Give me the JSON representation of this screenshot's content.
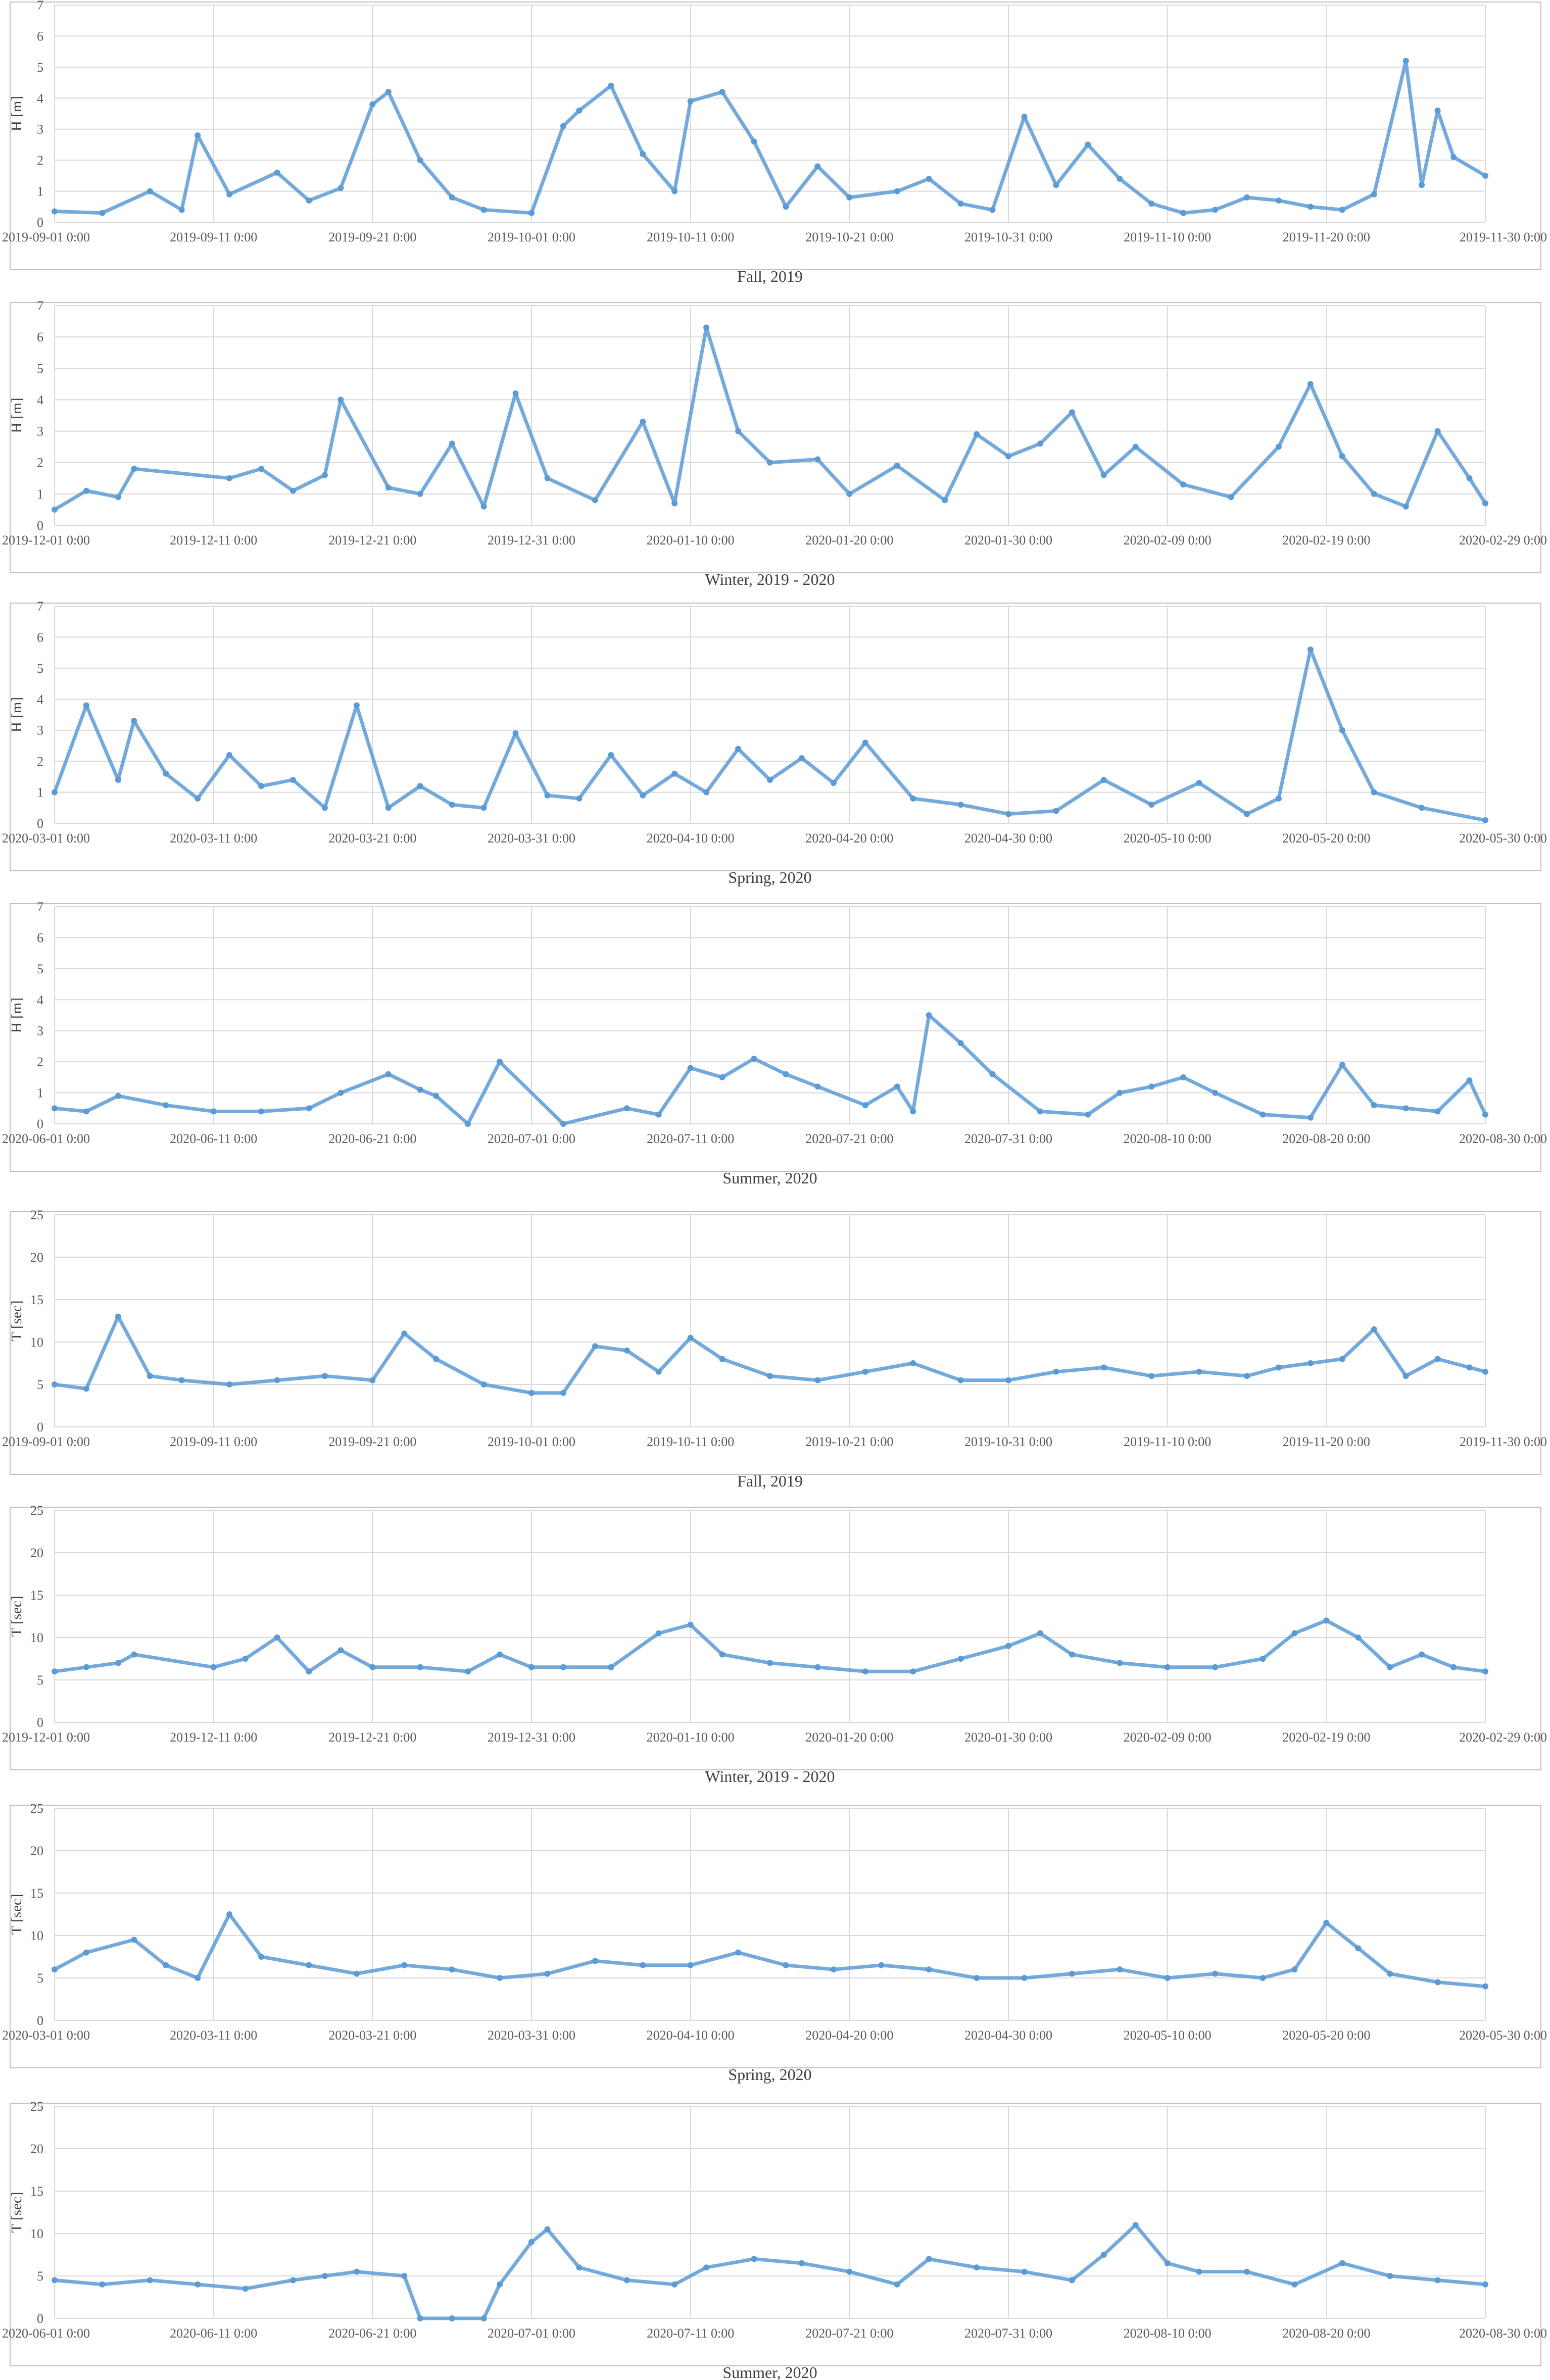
{
  "style": {
    "marker_color": "#5B9BD5",
    "grid_color": "#D9D9D9",
    "axis_text_color": "#595959"
  },
  "chart_data": [
    {
      "type": "scatter",
      "caption": "Fall, 2019",
      "ylabel": "H [m]",
      "ylim": [
        0,
        7
      ],
      "yticks": [
        "0",
        "1",
        "2",
        "3",
        "4",
        "5",
        "6",
        "7"
      ],
      "xticks": [
        "2019-09-01 0:00",
        "2019-09-11 0:00",
        "2019-09-21 0:00",
        "2019-10-01 0:00",
        "2019-10-11 0:00",
        "2019-10-21 0:00",
        "2019-10-31 0:00",
        "2019-11-10 0:00",
        "2019-11-20 0:00",
        "2019-11-30 0:00"
      ],
      "x": [
        "2019-09-01",
        "2019-09-04",
        "2019-09-07",
        "2019-09-09",
        "2019-09-10",
        "2019-09-12",
        "2019-09-15",
        "2019-09-17",
        "2019-09-19",
        "2019-09-21",
        "2019-09-22",
        "2019-09-24",
        "2019-09-26",
        "2019-09-28",
        "2019-10-01",
        "2019-10-03",
        "2019-10-04",
        "2019-10-06",
        "2019-10-08",
        "2019-10-10",
        "2019-10-11",
        "2019-10-13",
        "2019-10-15",
        "2019-10-17",
        "2019-10-19",
        "2019-10-21",
        "2019-10-24",
        "2019-10-26",
        "2019-10-28",
        "2019-10-30",
        "2019-11-01",
        "2019-11-03",
        "2019-11-05",
        "2019-11-07",
        "2019-11-09",
        "2019-11-11",
        "2019-11-13",
        "2019-11-15",
        "2019-11-17",
        "2019-11-19",
        "2019-11-21",
        "2019-11-23",
        "2019-11-25",
        "2019-11-26",
        "2019-11-27",
        "2019-11-28",
        "2019-11-30"
      ],
      "y": [
        0.35,
        0.3,
        1.0,
        0.4,
        2.8,
        0.9,
        1.6,
        0.7,
        1.1,
        3.8,
        4.2,
        2.0,
        0.8,
        0.4,
        0.3,
        3.1,
        3.6,
        4.4,
        2.2,
        1.0,
        3.9,
        4.2,
        2.6,
        0.5,
        1.8,
        0.8,
        1.0,
        1.4,
        0.6,
        0.4,
        3.4,
        1.2,
        2.5,
        1.4,
        0.6,
        0.3,
        0.4,
        0.8,
        0.7,
        0.5,
        0.4,
        0.9,
        5.2,
        1.2,
        3.6,
        2.1,
        1.5
      ]
    },
    {
      "type": "scatter",
      "caption": "Winter, 2019 - 2020",
      "ylabel": "H [m]",
      "ylim": [
        0,
        7
      ],
      "yticks": [
        "0",
        "1",
        "2",
        "3",
        "4",
        "5",
        "6",
        "7"
      ],
      "xticks": [
        "2019-12-01 0:00",
        "2019-12-11 0:00",
        "2019-12-21 0:00",
        "2019-12-31 0:00",
        "2020-01-10 0:00",
        "2020-01-20 0:00",
        "2020-01-30 0:00",
        "2020-02-09 0:00",
        "2020-02-19 0:00",
        "2020-02-29 0:00"
      ],
      "x": [
        "2019-12-01",
        "2019-12-03",
        "2019-12-05",
        "2019-12-06",
        "2019-12-12",
        "2019-12-14",
        "2019-12-16",
        "2019-12-18",
        "2019-12-19",
        "2019-12-22",
        "2019-12-24",
        "2019-12-26",
        "2019-12-28",
        "2019-12-30",
        "2020-01-01",
        "2020-01-04",
        "2020-01-07",
        "2020-01-09",
        "2020-01-11",
        "2020-01-13",
        "2020-01-15",
        "2020-01-18",
        "2020-01-20",
        "2020-01-23",
        "2020-01-26",
        "2020-01-28",
        "2020-01-30",
        "2020-02-01",
        "2020-02-03",
        "2020-02-05",
        "2020-02-07",
        "2020-02-10",
        "2020-02-13",
        "2020-02-16",
        "2020-02-18",
        "2020-02-20",
        "2020-02-22",
        "2020-02-24",
        "2020-02-26",
        "2020-02-28",
        "2020-02-29"
      ],
      "y": [
        0.5,
        1.1,
        0.9,
        1.8,
        1.5,
        1.8,
        1.1,
        1.6,
        4.0,
        1.2,
        1.0,
        2.6,
        0.6,
        4.2,
        1.5,
        0.8,
        3.3,
        0.7,
        6.3,
        3.0,
        2.0,
        2.1,
        1.0,
        1.9,
        0.8,
        2.9,
        2.2,
        2.6,
        3.6,
        1.6,
        2.5,
        1.3,
        0.9,
        2.5,
        4.5,
        2.2,
        1.0,
        0.6,
        3.0,
        1.5,
        0.7
      ]
    },
    {
      "type": "scatter",
      "caption": "Spring, 2020",
      "ylabel": "H [m]",
      "ylim": [
        0,
        7
      ],
      "yticks": [
        "0",
        "1",
        "2",
        "3",
        "4",
        "5",
        "6",
        "7"
      ],
      "xticks": [
        "2020-03-01 0:00",
        "2020-03-11 0:00",
        "2020-03-21 0:00",
        "2020-03-31 0:00",
        "2020-04-10 0:00",
        "2020-04-20 0:00",
        "2020-04-30 0:00",
        "2020-05-10 0:00",
        "2020-05-20 0:00",
        "2020-05-30 0:00"
      ],
      "x": [
        "2020-03-01",
        "2020-03-03",
        "2020-03-05",
        "2020-03-06",
        "2020-03-08",
        "2020-03-10",
        "2020-03-12",
        "2020-03-14",
        "2020-03-16",
        "2020-03-18",
        "2020-03-20",
        "2020-03-22",
        "2020-03-24",
        "2020-03-26",
        "2020-03-28",
        "2020-03-30",
        "2020-04-01",
        "2020-04-03",
        "2020-04-05",
        "2020-04-07",
        "2020-04-09",
        "2020-04-11",
        "2020-04-13",
        "2020-04-15",
        "2020-04-17",
        "2020-04-19",
        "2020-04-21",
        "2020-04-24",
        "2020-04-27",
        "2020-04-30",
        "2020-05-03",
        "2020-05-06",
        "2020-05-09",
        "2020-05-12",
        "2020-05-15",
        "2020-05-17",
        "2020-05-19",
        "2020-05-21",
        "2020-05-23",
        "2020-05-26",
        "2020-05-30"
      ],
      "y": [
        1.0,
        3.8,
        1.4,
        3.3,
        1.6,
        0.8,
        2.2,
        1.2,
        1.4,
        0.5,
        3.8,
        0.5,
        1.2,
        0.6,
        0.5,
        2.9,
        0.9,
        0.8,
        2.2,
        0.9,
        1.6,
        1.0,
        2.4,
        1.4,
        2.1,
        1.3,
        2.6,
        0.8,
        0.6,
        0.3,
        0.4,
        1.4,
        0.6,
        1.3,
        0.3,
        0.8,
        5.6,
        3.0,
        1.0,
        0.5,
        0.1
      ]
    },
    {
      "type": "scatter",
      "caption": "Summer, 2020",
      "ylabel": "H [m]",
      "ylim": [
        0,
        7
      ],
      "yticks": [
        "0",
        "1",
        "2",
        "3",
        "4",
        "5",
        "6",
        "7"
      ],
      "xticks": [
        "2020-06-01 0:00",
        "2020-06-11 0:00",
        "2020-06-21 0:00",
        "2020-07-01 0:00",
        "2020-07-11 0:00",
        "2020-07-21 0:00",
        "2020-07-31 0:00",
        "2020-08-10 0:00",
        "2020-08-20 0:00",
        "2020-08-30 0:00"
      ],
      "x": [
        "2020-06-01",
        "2020-06-03",
        "2020-06-05",
        "2020-06-08",
        "2020-06-11",
        "2020-06-14",
        "2020-06-17",
        "2020-06-19",
        "2020-06-22",
        "2020-06-24",
        "2020-06-25",
        "2020-06-27",
        "2020-06-29",
        "2020-07-03",
        "2020-07-07",
        "2020-07-09",
        "2020-07-11",
        "2020-07-13",
        "2020-07-15",
        "2020-07-17",
        "2020-07-19",
        "2020-07-22",
        "2020-07-24",
        "2020-07-25",
        "2020-07-26",
        "2020-07-28",
        "2020-07-30",
        "2020-08-02",
        "2020-08-05",
        "2020-08-07",
        "2020-08-09",
        "2020-08-11",
        "2020-08-13",
        "2020-08-16",
        "2020-08-19",
        "2020-08-21",
        "2020-08-23",
        "2020-08-25",
        "2020-08-27",
        "2020-08-29",
        "2020-08-30"
      ],
      "y": [
        0.5,
        0.4,
        0.9,
        0.6,
        0.4,
        0.4,
        0.5,
        1.0,
        1.6,
        1.1,
        0.9,
        0.0,
        2.0,
        0.0,
        0.5,
        0.3,
        1.8,
        1.5,
        2.1,
        1.6,
        1.2,
        0.6,
        1.2,
        0.4,
        3.5,
        2.6,
        1.6,
        0.4,
        0.3,
        1.0,
        1.2,
        1.5,
        1.0,
        0.3,
        0.2,
        1.9,
        0.6,
        0.5,
        0.4,
        1.4,
        0.3
      ]
    },
    {
      "type": "scatter",
      "caption": "Fall, 2019",
      "ylabel": "T [sec]",
      "ylim": [
        0,
        25
      ],
      "yticks": [
        "0",
        "5",
        "10",
        "15",
        "20",
        "25"
      ],
      "xticks": [
        "2019-09-01 0:00",
        "2019-09-11 0:00",
        "2019-09-21 0:00",
        "2019-10-01 0:00",
        "2019-10-11 0:00",
        "2019-10-21 0:00",
        "2019-10-31 0:00",
        "2019-11-10 0:00",
        "2019-11-20 0:00",
        "2019-11-30 0:00"
      ],
      "x": [
        "2019-09-01",
        "2019-09-03",
        "2019-09-05",
        "2019-09-07",
        "2019-09-09",
        "2019-09-12",
        "2019-09-15",
        "2019-09-18",
        "2019-09-21",
        "2019-09-23",
        "2019-09-25",
        "2019-09-28",
        "2019-10-01",
        "2019-10-03",
        "2019-10-05",
        "2019-10-07",
        "2019-10-09",
        "2019-10-11",
        "2019-10-13",
        "2019-10-16",
        "2019-10-19",
        "2019-10-22",
        "2019-10-25",
        "2019-10-28",
        "2019-10-31",
        "2019-11-03",
        "2019-11-06",
        "2019-11-09",
        "2019-11-12",
        "2019-11-15",
        "2019-11-17",
        "2019-11-19",
        "2019-11-21",
        "2019-11-23",
        "2019-11-25",
        "2019-11-27",
        "2019-11-29",
        "2019-11-30"
      ],
      "y": [
        5.0,
        4.5,
        13.0,
        6.0,
        5.5,
        5.0,
        5.5,
        6.0,
        5.5,
        11.0,
        8.0,
        5.0,
        4.0,
        4.0,
        9.5,
        9.0,
        6.5,
        10.5,
        8.0,
        6.0,
        5.5,
        6.5,
        7.5,
        5.5,
        5.5,
        6.5,
        7.0,
        6.0,
        6.5,
        6.0,
        7.0,
        7.5,
        8.0,
        11.5,
        6.0,
        8.0,
        7.0,
        6.5
      ]
    },
    {
      "type": "scatter",
      "caption": "Winter, 2019 - 2020",
      "ylabel": "T [sec]",
      "ylim": [
        0,
        25
      ],
      "yticks": [
        "0",
        "5",
        "10",
        "15",
        "20",
        "25"
      ],
      "xticks": [
        "2019-12-01 0:00",
        "2019-12-11 0:00",
        "2019-12-21 0:00",
        "2019-12-31 0:00",
        "2020-01-10 0:00",
        "2020-01-20 0:00",
        "2020-01-30 0:00",
        "2020-02-09 0:00",
        "2020-02-19 0:00",
        "2020-02-29 0:00"
      ],
      "x": [
        "2019-12-01",
        "2019-12-03",
        "2019-12-05",
        "2019-12-06",
        "2019-12-11",
        "2019-12-13",
        "2019-12-15",
        "2019-12-17",
        "2019-12-19",
        "2019-12-21",
        "2019-12-24",
        "2019-12-27",
        "2019-12-29",
        "2019-12-31",
        "2020-01-02",
        "2020-01-05",
        "2020-01-08",
        "2020-01-10",
        "2020-01-12",
        "2020-01-15",
        "2020-01-18",
        "2020-01-21",
        "2020-01-24",
        "2020-01-27",
        "2020-01-30",
        "2020-02-01",
        "2020-02-03",
        "2020-02-06",
        "2020-02-09",
        "2020-02-12",
        "2020-02-15",
        "2020-02-17",
        "2020-02-19",
        "2020-02-21",
        "2020-02-23",
        "2020-02-25",
        "2020-02-27",
        "2020-02-29"
      ],
      "y": [
        6.0,
        6.5,
        7.0,
        8.0,
        6.5,
        7.5,
        10.0,
        6.0,
        8.5,
        6.5,
        6.5,
        6.0,
        8.0,
        6.5,
        6.5,
        6.5,
        10.5,
        11.5,
        8.0,
        7.0,
        6.5,
        6.0,
        6.0,
        7.5,
        9.0,
        10.5,
        8.0,
        7.0,
        6.5,
        6.5,
        7.5,
        10.5,
        12.0,
        10.0,
        6.5,
        8.0,
        6.5,
        6.0
      ]
    },
    {
      "type": "scatter",
      "caption": "Spring, 2020",
      "ylabel": "T [sec]",
      "ylim": [
        0,
        25
      ],
      "yticks": [
        "0",
        "5",
        "10",
        "15",
        "20",
        "25"
      ],
      "xticks": [
        "2020-03-01 0:00",
        "2020-03-11 0:00",
        "2020-03-21 0:00",
        "2020-03-31 0:00",
        "2020-04-10 0:00",
        "2020-04-20 0:00",
        "2020-04-30 0:00",
        "2020-05-10 0:00",
        "2020-05-20 0:00",
        "2020-05-30 0:00"
      ],
      "x": [
        "2020-03-01",
        "2020-03-03",
        "2020-03-06",
        "2020-03-08",
        "2020-03-10",
        "2020-03-12",
        "2020-03-14",
        "2020-03-17",
        "2020-03-20",
        "2020-03-23",
        "2020-03-26",
        "2020-03-29",
        "2020-04-01",
        "2020-04-04",
        "2020-04-07",
        "2020-04-10",
        "2020-04-13",
        "2020-04-16",
        "2020-04-19",
        "2020-04-22",
        "2020-04-25",
        "2020-04-28",
        "2020-05-01",
        "2020-05-04",
        "2020-05-07",
        "2020-05-10",
        "2020-05-13",
        "2020-05-16",
        "2020-05-18",
        "2020-05-20",
        "2020-05-22",
        "2020-05-24",
        "2020-05-27",
        "2020-05-30"
      ],
      "y": [
        6.0,
        8.0,
        9.5,
        6.5,
        5.0,
        12.5,
        7.5,
        6.5,
        5.5,
        6.5,
        6.0,
        5.0,
        5.5,
        7.0,
        6.5,
        6.5,
        8.0,
        6.5,
        6.0,
        6.5,
        6.0,
        5.0,
        5.0,
        5.5,
        6.0,
        5.0,
        5.5,
        5.0,
        6.0,
        11.5,
        8.5,
        5.5,
        4.5,
        4.0
      ]
    },
    {
      "type": "scatter",
      "caption": "Summer, 2020",
      "ylabel": "T [sec]",
      "ylim": [
        0,
        25
      ],
      "yticks": [
        "0",
        "5",
        "10",
        "15",
        "20",
        "25"
      ],
      "xticks": [
        "2020-06-01 0:00",
        "2020-06-11 0:00",
        "2020-06-21 0:00",
        "2020-07-01 0:00",
        "2020-07-11 0:00",
        "2020-07-21 0:00",
        "2020-07-31 0:00",
        "2020-08-10 0:00",
        "2020-08-20 0:00",
        "2020-08-30 0:00"
      ],
      "x": [
        "2020-06-01",
        "2020-06-04",
        "2020-06-07",
        "2020-06-10",
        "2020-06-13",
        "2020-06-16",
        "2020-06-18",
        "2020-06-20",
        "2020-06-23",
        "2020-06-24",
        "2020-06-26",
        "2020-06-28",
        "2020-06-29",
        "2020-07-01",
        "2020-07-02",
        "2020-07-04",
        "2020-07-07",
        "2020-07-10",
        "2020-07-12",
        "2020-07-15",
        "2020-07-18",
        "2020-07-21",
        "2020-07-24",
        "2020-07-26",
        "2020-07-29",
        "2020-08-01",
        "2020-08-04",
        "2020-08-06",
        "2020-08-08",
        "2020-08-10",
        "2020-08-12",
        "2020-08-15",
        "2020-08-18",
        "2020-08-21",
        "2020-08-24",
        "2020-08-27",
        "2020-08-30"
      ],
      "y": [
        4.5,
        4.0,
        4.5,
        4.0,
        3.5,
        4.5,
        5.0,
        5.5,
        5.0,
        0.0,
        0.0,
        0.0,
        4.0,
        9.0,
        10.5,
        6.0,
        4.5,
        4.0,
        6.0,
        7.0,
        6.5,
        5.5,
        4.0,
        7.0,
        6.0,
        5.5,
        4.5,
        7.5,
        11.0,
        6.5,
        5.5,
        5.5,
        4.0,
        6.5,
        5.0,
        4.5,
        4.0
      ]
    }
  ]
}
